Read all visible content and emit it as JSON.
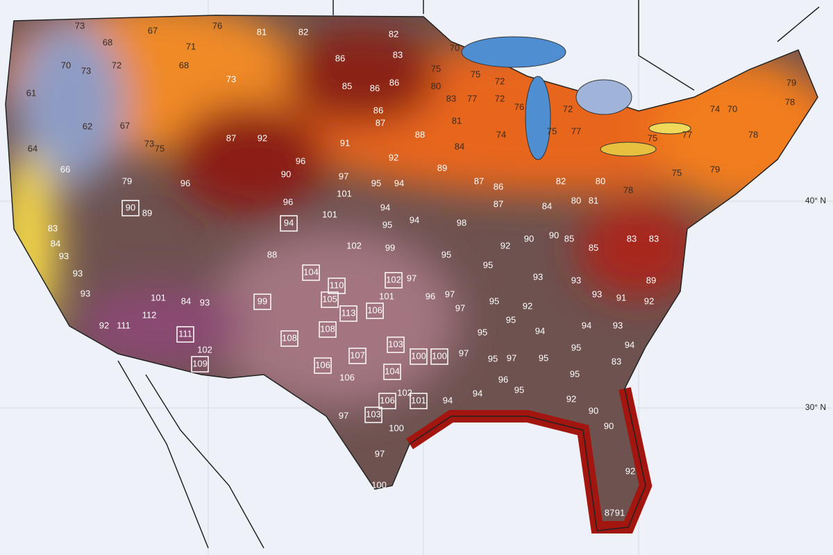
{
  "map": {
    "lat_labels": [
      "40° N",
      "30° N"
    ],
    "temperatures": [
      73,
      67,
      76,
      81,
      82,
      82,
      68,
      70,
      73,
      72,
      71,
      68,
      73,
      86,
      83,
      70,
      75,
      80,
      75,
      72,
      72,
      77,
      83,
      76,
      72,
      75,
      77,
      79,
      78,
      74,
      70,
      78,
      75,
      77,
      75,
      79,
      61,
      62,
      67,
      64,
      66,
      73,
      75,
      85,
      86,
      86,
      86,
      87,
      88,
      81,
      84,
      74,
      87,
      92,
      91,
      92,
      96,
      90,
      97,
      101,
      95,
      94,
      89,
      87,
      86,
      87,
      82,
      80,
      78,
      79,
      96,
      89,
      96,
      101,
      94,
      95,
      94,
      98,
      84,
      80,
      81,
      102,
      99,
      92,
      90,
      90,
      85,
      85,
      83,
      83,
      95,
      95,
      88,
      83,
      84,
      93,
      93,
      93,
      97,
      101,
      96,
      97,
      97,
      101,
      84,
      93,
      95,
      92,
      93,
      93,
      93,
      91,
      92,
      89,
      112,
      92,
      111,
      95,
      94,
      94,
      93,
      95,
      95,
      97,
      95,
      95,
      94,
      97,
      102,
      106,
      96,
      95,
      83,
      102,
      94,
      94,
      97,
      90,
      92,
      100,
      95,
      90,
      97,
      100,
      87,
      91,
      92
    ],
    "record_temperatures": [
      90,
      94,
      104,
      102,
      110,
      105,
      99,
      113,
      106,
      108,
      108,
      111,
      103,
      100,
      100,
      109,
      106,
      107,
      104,
      106,
      101,
      103
    ]
  }
}
